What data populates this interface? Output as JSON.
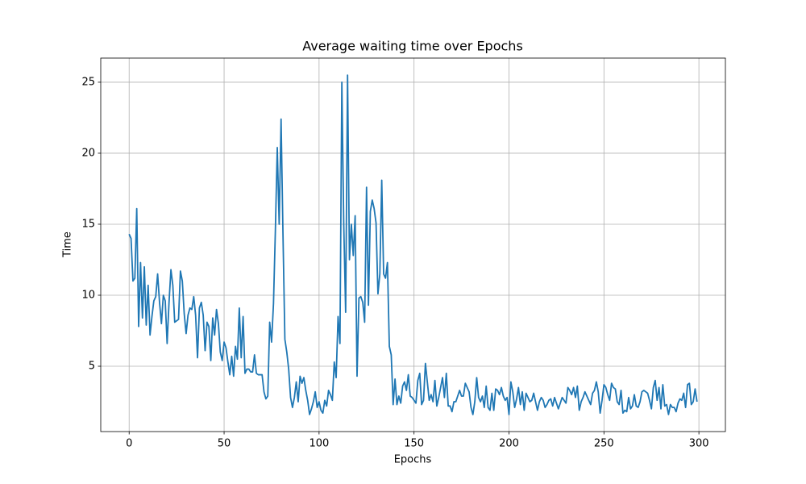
{
  "chart_data": {
    "type": "line",
    "title": "Average waiting time over Epochs",
    "xlabel": "Epochs",
    "ylabel": "Time",
    "x": [
      0,
      1,
      2,
      3,
      4,
      5,
      6,
      7,
      8,
      9,
      10,
      11,
      12,
      13,
      14,
      15,
      16,
      17,
      18,
      19,
      20,
      21,
      22,
      23,
      24,
      25,
      26,
      27,
      28,
      29,
      30,
      31,
      32,
      33,
      34,
      35,
      36,
      37,
      38,
      39,
      40,
      41,
      42,
      43,
      44,
      45,
      46,
      47,
      48,
      49,
      50,
      51,
      52,
      53,
      54,
      55,
      56,
      57,
      58,
      59,
      60,
      61,
      62,
      63,
      64,
      65,
      66,
      67,
      68,
      69,
      70,
      71,
      72,
      73,
      74,
      75,
      76,
      77,
      78,
      79,
      80,
      81,
      82,
      83,
      84,
      85,
      86,
      87,
      88,
      89,
      90,
      91,
      92,
      93,
      94,
      95,
      96,
      97,
      98,
      99,
      100,
      101,
      102,
      103,
      104,
      105,
      106,
      107,
      108,
      109,
      110,
      111,
      112,
      113,
      114,
      115,
      116,
      117,
      118,
      119,
      120,
      121,
      122,
      123,
      124,
      125,
      126,
      127,
      128,
      129,
      130,
      131,
      132,
      133,
      134,
      135,
      136,
      137,
      138,
      139,
      140,
      141,
      142,
      143,
      144,
      145,
      146,
      147,
      148,
      149,
      150,
      151,
      152,
      153,
      154,
      155,
      156,
      157,
      158,
      159,
      160,
      161,
      162,
      163,
      164,
      165,
      166,
      167,
      168,
      169,
      170,
      171,
      172,
      173,
      174,
      175,
      176,
      177,
      178,
      179,
      180,
      181,
      182,
      183,
      184,
      185,
      186,
      187,
      188,
      189,
      190,
      191,
      192,
      193,
      194,
      195,
      196,
      197,
      198,
      199,
      200,
      201,
      202,
      203,
      204,
      205,
      206,
      207,
      208,
      209,
      210,
      211,
      212,
      213,
      214,
      215,
      216,
      217,
      218,
      219,
      220,
      221,
      222,
      223,
      224,
      225,
      226,
      227,
      228,
      229,
      230,
      231,
      232,
      233,
      234,
      235,
      236,
      237,
      238,
      239,
      240,
      241,
      242,
      243,
      244,
      245,
      246,
      247,
      248,
      249,
      250,
      251,
      252,
      253,
      254,
      255,
      256,
      257,
      258,
      259,
      260,
      261,
      262,
      263,
      264,
      265,
      266,
      267,
      268,
      269,
      270,
      271,
      272,
      273,
      274,
      275,
      276,
      277,
      278,
      279,
      280,
      281,
      282,
      283,
      284,
      285,
      286,
      287,
      288,
      289,
      290,
      291,
      292,
      293,
      294,
      295,
      296,
      297,
      298,
      299
    ],
    "series": [
      {
        "name": "Average waiting time",
        "color": "#1f77b4",
        "values": [
          14.3,
          14.0,
          11.0,
          11.2,
          16.1,
          7.8,
          12.3,
          8.4,
          12.0,
          7.9,
          10.7,
          7.2,
          8.5,
          9.6,
          9.9,
          11.5,
          9.5,
          8.0,
          10.0,
          9.6,
          6.6,
          9.5,
          11.8,
          10.7,
          8.1,
          8.2,
          8.3,
          11.7,
          11.0,
          8.7,
          7.3,
          8.6,
          9.1,
          9.0,
          9.9,
          8.6,
          5.6,
          9.1,
          9.5,
          8.6,
          6.1,
          8.1,
          7.8,
          5.4,
          8.4,
          7.2,
          9.0,
          8.0,
          6.0,
          5.4,
          6.7,
          6.3,
          5.3,
          4.4,
          5.7,
          4.3,
          6.4,
          5.5,
          9.1,
          5.6,
          8.5,
          4.5,
          4.8,
          4.8,
          4.6,
          4.6,
          5.8,
          4.5,
          4.4,
          4.4,
          4.4,
          3.2,
          2.7,
          2.9,
          8.1,
          6.7,
          9.4,
          14.6,
          20.4,
          15.0,
          22.4,
          14.3,
          6.9,
          6.0,
          4.8,
          2.8,
          2.1,
          2.8,
          3.9,
          2.5,
          4.3,
          3.8,
          4.2,
          3.3,
          2.6,
          1.6,
          2.0,
          2.5,
          3.2,
          2.1,
          2.5,
          1.9,
          1.7,
          2.6,
          2.2,
          3.3,
          3.0,
          2.6,
          5.3,
          4.2,
          8.5,
          6.6,
          25.0,
          15.0,
          8.8,
          25.5,
          12.5,
          15.0,
          12.8,
          15.6,
          4.3,
          9.8,
          9.9,
          9.5,
          8.1,
          17.6,
          9.3,
          15.9,
          16.7,
          16.1,
          15.1,
          10.1,
          11.5,
          18.1,
          11.5,
          11.2,
          12.3,
          6.4,
          5.8,
          2.3,
          4.1,
          2.3,
          2.9,
          2.4,
          3.6,
          3.9,
          3.3,
          4.4,
          2.9,
          2.8,
          2.6,
          2.4,
          4.0,
          4.5,
          2.3,
          2.6,
          5.2,
          3.9,
          2.6,
          3.0,
          2.5,
          4.0,
          2.2,
          2.8,
          3.5,
          4.2,
          2.8,
          4.5,
          2.2,
          2.2,
          1.8,
          2.5,
          2.5,
          2.9,
          3.3,
          2.9,
          2.9,
          3.8,
          3.5,
          3.2,
          2.1,
          1.6,
          2.5,
          4.2,
          2.8,
          2.5,
          2.9,
          2.1,
          3.6,
          2.1,
          1.9,
          3.1,
          1.9,
          3.4,
          3.3,
          3.0,
          3.5,
          2.9,
          2.6,
          2.8,
          1.6,
          3.9,
          3.2,
          2.1,
          2.7,
          3.5,
          2.3,
          3.2,
          1.9,
          3.1,
          2.8,
          2.5,
          2.6,
          3.1,
          2.5,
          1.9,
          2.5,
          2.8,
          2.6,
          2.1,
          2.3,
          2.6,
          2.7,
          2.2,
          2.8,
          2.4,
          2.0,
          2.4,
          2.8,
          2.6,
          2.4,
          3.5,
          3.3,
          3.0,
          3.5,
          2.8,
          3.6,
          1.9,
          2.5,
          2.8,
          3.2,
          2.9,
          2.6,
          2.3,
          3.1,
          3.3,
          3.9,
          3.2,
          1.7,
          2.6,
          3.7,
          3.5,
          3.0,
          2.6,
          3.8,
          3.5,
          3.4,
          2.5,
          2.3,
          3.3,
          1.7,
          1.9,
          1.8,
          2.8,
          2.0,
          2.2,
          3.0,
          2.2,
          2.1,
          2.5,
          3.2,
          3.3,
          3.2,
          3.1,
          2.6,
          2.0,
          3.5,
          4.0,
          2.6,
          3.5,
          2.0,
          3.7,
          2.2,
          2.3,
          1.6,
          2.3,
          2.1,
          2.1,
          1.8,
          2.4,
          2.7,
          2.6,
          3.1,
          2.1,
          3.7,
          3.8,
          2.3,
          2.5,
          3.4,
          2.5
        ]
      }
    ],
    "xlim": [
      -14.95,
      313.95
    ],
    "ylim": [
      0.4,
      26.7
    ],
    "xticks": [
      0,
      50,
      100,
      150,
      200,
      250,
      300
    ],
    "yticks": [
      5,
      10,
      15,
      20,
      25
    ],
    "grid": true
  }
}
